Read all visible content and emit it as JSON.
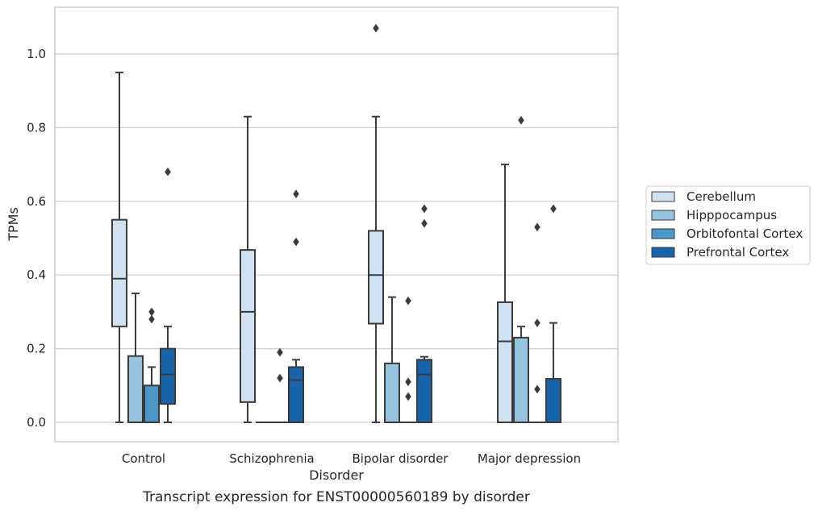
{
  "chart_data": {
    "type": "box",
    "xlabel": "Disorder",
    "ylabel": "TPMs",
    "caption": "Transcript expression for ENST00000560189 by disorder",
    "ylim": [
      -0.05,
      1.125
    ],
    "yticks": [
      "0.0",
      "0.2",
      "0.4",
      "0.6",
      "0.8",
      "1.0"
    ],
    "ytick_values": [
      0.0,
      0.2,
      0.4,
      0.6,
      0.8,
      1.0
    ],
    "grid": "horizontal",
    "legend_placement": "right",
    "categories": [
      "Control",
      "Schizophrenia",
      "Bipolar disorder",
      "Major depression"
    ],
    "series": [
      {
        "name": "Cerebellum",
        "color": "#d0e1f2",
        "boxes": [
          {
            "whislo": 0.0,
            "q1": 0.26,
            "med": 0.39,
            "q3": 0.55,
            "whishi": 0.95,
            "fliers": []
          },
          {
            "whislo": 0.0,
            "q1": 0.055,
            "med": 0.3,
            "q3": 0.468,
            "whishi": 0.83,
            "fliers": []
          },
          {
            "whislo": 0.0,
            "q1": 0.268,
            "med": 0.4,
            "q3": 0.52,
            "whishi": 0.83,
            "fliers": [
              1.07
            ]
          },
          {
            "whislo": 0.0,
            "q1": 0.0,
            "med": 0.22,
            "q3": 0.326,
            "whishi": 0.7,
            "fliers": []
          }
        ]
      },
      {
        "name": "Hipppocampus",
        "color": "#94c4df",
        "boxes": [
          {
            "whislo": 0.0,
            "q1": 0.0,
            "med": 0.0,
            "q3": 0.18,
            "whishi": 0.35,
            "fliers": []
          },
          {
            "whislo": 0.0,
            "q1": 0.0,
            "med": 0.0,
            "q3": 0.0,
            "whishi": 0.0,
            "fliers": []
          },
          {
            "whislo": 0.0,
            "q1": 0.0,
            "med": 0.0,
            "q3": 0.16,
            "whishi": 0.34,
            "fliers": []
          },
          {
            "whislo": 0.0,
            "q1": 0.0,
            "med": 0.0,
            "q3": 0.23,
            "whishi": 0.26,
            "fliers": [
              0.82
            ]
          }
        ]
      },
      {
        "name": "Orbitofontal Cortex",
        "color": "#4a98c9",
        "boxes": [
          {
            "whislo": 0.0,
            "q1": 0.0,
            "med": 0.0,
            "q3": 0.1,
            "whishi": 0.15,
            "fliers": [
              0.28,
              0.3
            ]
          },
          {
            "whislo": 0.0,
            "q1": 0.0,
            "med": 0.0,
            "q3": 0.0,
            "whishi": 0.0,
            "fliers": [
              0.12,
              0.19
            ]
          },
          {
            "whislo": 0.0,
            "q1": 0.0,
            "med": 0.0,
            "q3": 0.0,
            "whishi": 0.0,
            "fliers": [
              0.07,
              0.11,
              0.33
            ]
          },
          {
            "whislo": 0.0,
            "q1": 0.0,
            "med": 0.0,
            "q3": 0.0,
            "whishi": 0.0,
            "fliers": [
              0.09,
              0.27,
              0.53
            ]
          }
        ]
      },
      {
        "name": "Prefrontal Cortex",
        "color": "#1764ab",
        "boxes": [
          {
            "whislo": 0.0,
            "q1": 0.05,
            "med": 0.13,
            "q3": 0.2,
            "whishi": 0.26,
            "fliers": [
              0.68
            ]
          },
          {
            "whislo": 0.0,
            "q1": 0.0,
            "med": 0.115,
            "q3": 0.15,
            "whishi": 0.17,
            "fliers": [
              0.49,
              0.62
            ]
          },
          {
            "whislo": 0.0,
            "q1": 0.0,
            "med": 0.13,
            "q3": 0.17,
            "whishi": 0.178,
            "fliers": [
              0.54,
              0.58
            ]
          },
          {
            "whislo": 0.0,
            "q1": 0.0,
            "med": 0.0,
            "q3": 0.118,
            "whishi": 0.27,
            "fliers": [
              0.58
            ]
          }
        ]
      }
    ]
  }
}
